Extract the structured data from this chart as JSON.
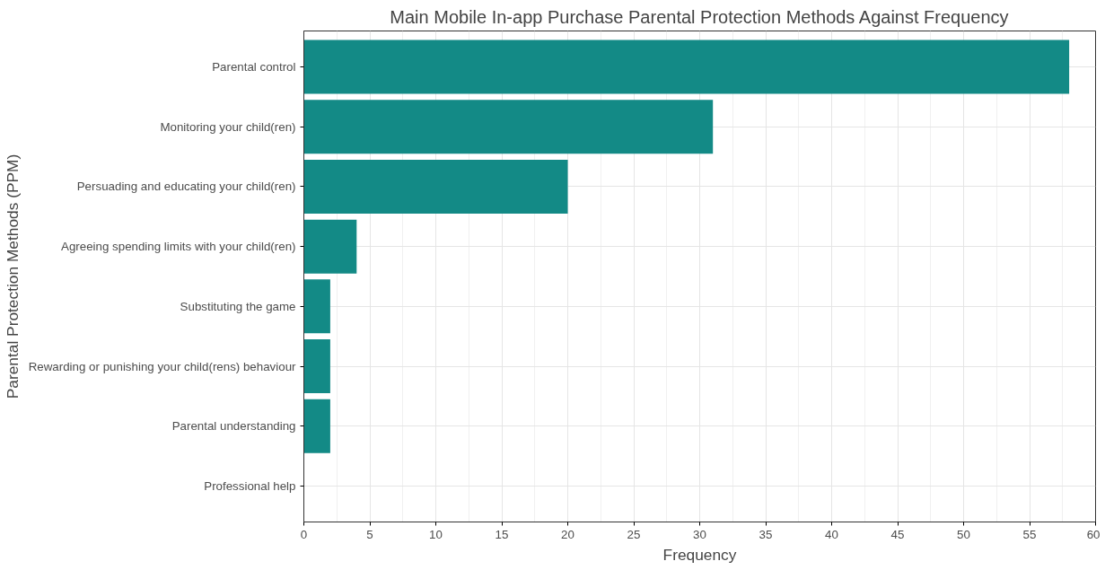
{
  "chart_data": {
    "type": "bar",
    "orientation": "horizontal",
    "title": "Main Mobile In-app Purchase Parental Protection Methods Against Frequency",
    "xlabel": "Frequency",
    "ylabel": "Parental Protection Methods (PPM)",
    "categories": [
      "Parental control",
      "Monitoring your child(ren)",
      "Persuading and educating your child(ren)",
      "Agreeing spending limits with your child(ren)",
      "Substituting the game",
      "Rewarding or punishing your child(rens) behaviour",
      "Parental understanding",
      "Professional help"
    ],
    "values": [
      58,
      31,
      20,
      4,
      2,
      2,
      2,
      0
    ],
    "color": "#138a86",
    "xlim": [
      0,
      60
    ],
    "xticks": [
      0,
      5,
      10,
      15,
      20,
      25,
      30,
      35,
      40,
      45,
      50,
      55,
      60
    ],
    "grid": true
  }
}
